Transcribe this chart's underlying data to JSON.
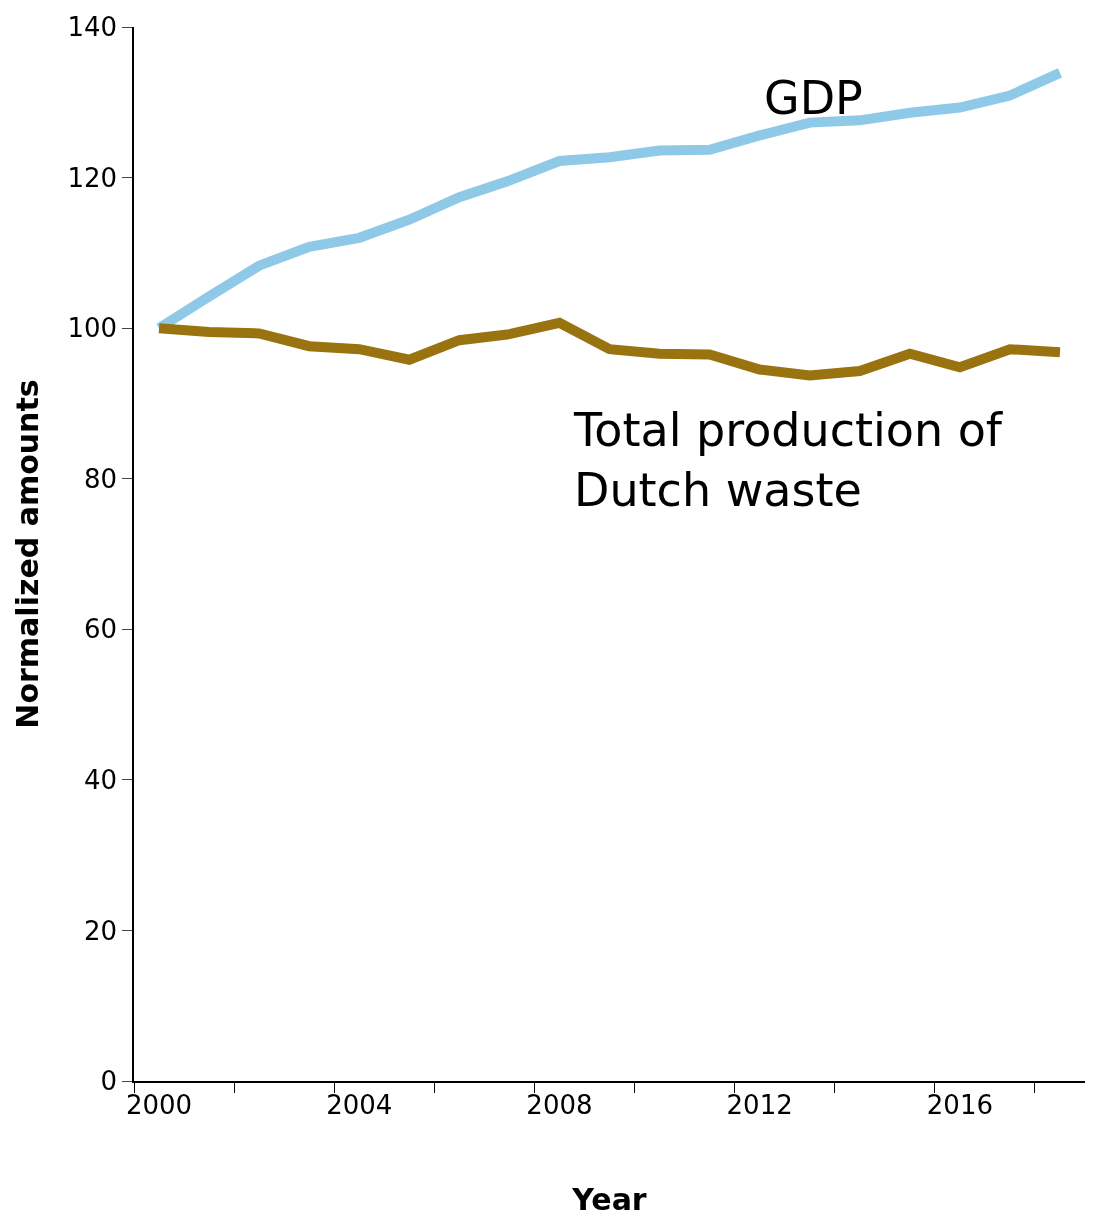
{
  "chart_data": {
    "type": "line",
    "xlabel": "Year",
    "ylabel": "Normalized amounts",
    "categories": [
      "2000",
      null,
      null,
      null,
      "2004",
      null,
      null,
      null,
      "2008",
      null,
      null,
      null,
      "2012",
      null,
      null,
      null,
      "2016",
      null,
      null
    ],
    "series": [
      {
        "name": "GDP",
        "color": "#8fc9e8",
        "values": [
          100,
          104.2,
          108.3,
          110.8,
          112.0,
          114.4,
          117.4,
          119.6,
          122.2,
          122.7,
          123.6,
          123.7,
          125.6,
          127.3,
          127.6,
          128.6,
          129.3,
          130.9,
          133.9
        ]
      },
      {
        "name": "Total production of Dutch waste",
        "color": "#98730f",
        "values": [
          100,
          99.5,
          99.3,
          97.6,
          97.2,
          95.8,
          98.4,
          99.2,
          100.7,
          97.2,
          96.6,
          96.5,
          94.5,
          93.7,
          94.3,
          96.6,
          94.8,
          97.2,
          96.8
        ]
      }
    ],
    "ylim": [
      0,
      140
    ],
    "yticks": [
      0,
      20,
      40,
      60,
      80,
      100,
      120,
      140
    ],
    "legend": false,
    "marker": "none",
    "line_style": "solid"
  }
}
